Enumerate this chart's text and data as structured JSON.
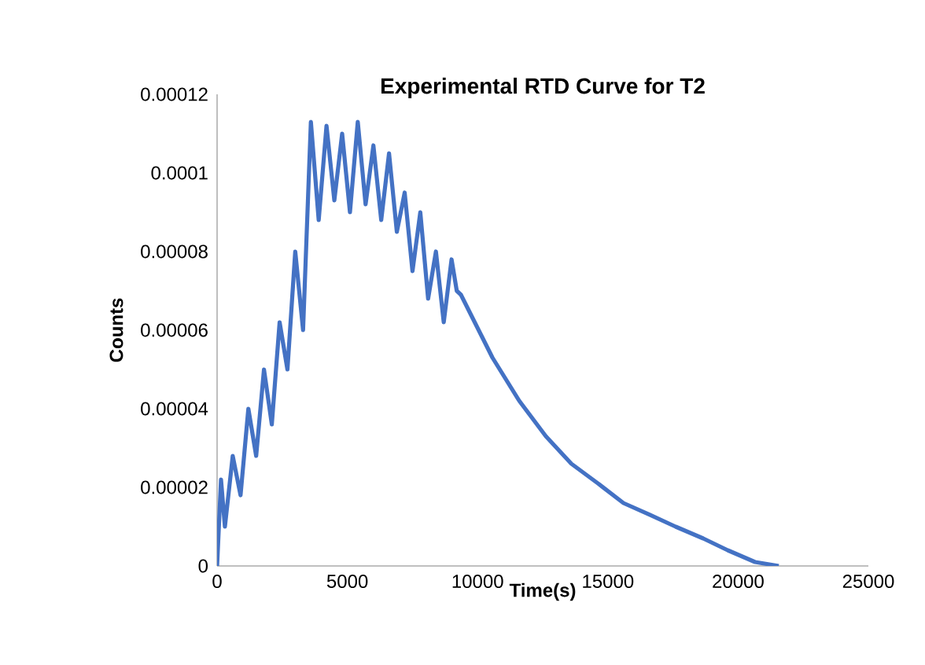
{
  "chart_data": {
    "type": "line",
    "title": "Experimental RTD Curve for T2",
    "xlabel": "Time(s)",
    "ylabel": "Counts",
    "xlim": [
      0,
      25000
    ],
    "xticks": [
      0,
      5000,
      10000,
      15000,
      20000,
      25000
    ],
    "ylim": [
      0,
      0.00012
    ],
    "yticks": [
      {
        "value": 0,
        "label": "0"
      },
      {
        "value": 2e-05,
        "label": "0.00002"
      },
      {
        "value": 4e-05,
        "label": "0.00004"
      },
      {
        "value": 6e-05,
        "label": "0.00006"
      },
      {
        "value": 8e-05,
        "label": "0.00008"
      },
      {
        "value": 0.0001,
        "label": "0.0001"
      },
      {
        "value": 0.00012,
        "label": "0.00012"
      }
    ],
    "grid": false,
    "marker": "none",
    "line_style": "solid",
    "series": [
      {
        "color": "#4472c4",
        "x": [
          0,
          150,
          300,
          600,
          900,
          1200,
          1500,
          1800,
          2100,
          2400,
          2700,
          3000,
          3300,
          3600,
          3900,
          4200,
          4500,
          4800,
          5100,
          5400,
          5700,
          6000,
          6300,
          6600,
          6900,
          7200,
          7500,
          7800,
          8100,
          8400,
          8700,
          9000,
          9200,
          9360,
          10570,
          11600,
          12620,
          13600,
          14620,
          15600,
          16610,
          17600,
          18660,
          19600,
          20650,
          21560
        ],
        "values": [
          0,
          2.2e-05,
          1e-05,
          2.8e-05,
          1.8e-05,
          4e-05,
          2.8e-05,
          5e-05,
          3.6e-05,
          6.2e-05,
          5e-05,
          8e-05,
          6e-05,
          0.000113,
          8.8e-05,
          0.000112,
          9.3e-05,
          0.00011,
          9e-05,
          0.000113,
          9.2e-05,
          0.000107,
          8.8e-05,
          0.000105,
          8.5e-05,
          9.5e-05,
          7.5e-05,
          9e-05,
          6.8e-05,
          8e-05,
          6.2e-05,
          7.8e-05,
          7e-05,
          6.9e-05,
          5.3e-05,
          4.2e-05,
          3.3e-05,
          2.6e-05,
          2.1e-05,
          1.6e-05,
          1.3e-05,
          1e-05,
          7e-06,
          4e-06,
          1e-06,
          0
        ]
      }
    ]
  }
}
